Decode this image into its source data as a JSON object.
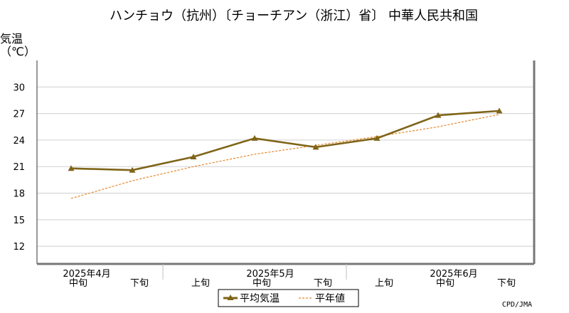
{
  "chart_data": {
    "type": "line",
    "title": "ハンチョウ（抗州）〔チョーチアン（浙江）省〕 中華人民共和国",
    "ylabel_line1": "気温",
    "ylabel_line2": "（℃）",
    "ylim": [
      10,
      33
    ],
    "yticks": [
      12,
      15,
      18,
      21,
      24,
      27,
      30
    ],
    "grid": true,
    "x_periods": [
      "中旬",
      "下旬",
      "上旬",
      "中旬",
      "下旬",
      "上旬",
      "中旬",
      "下旬"
    ],
    "x_months": [
      {
        "label": "2025年4月",
        "index": 0
      },
      {
        "label": "2025年5月",
        "index": 3
      },
      {
        "label": "2025年6月",
        "index": 6
      }
    ],
    "series": [
      {
        "name": "平均気温",
        "color": "#7f6418",
        "style": "solid-triangle",
        "values": [
          20.8,
          20.6,
          22.1,
          24.2,
          23.2,
          24.2,
          26.8,
          27.3
        ]
      },
      {
        "name": "平年値",
        "color": "#e8862a",
        "style": "dashed",
        "values": [
          17.4,
          19.4,
          21.0,
          22.4,
          23.4,
          24.4,
          25.5,
          26.9
        ]
      }
    ],
    "legend_position": "bottom-center",
    "credit": "CPD/JMA"
  }
}
